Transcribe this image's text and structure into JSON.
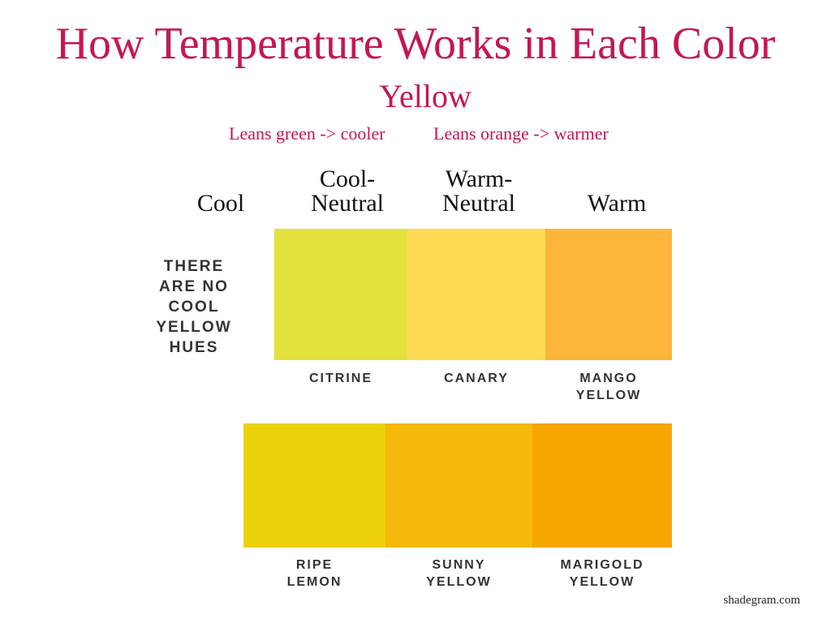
{
  "title": "How Temperature Works in Each Color",
  "subtitle": "Yellow",
  "leans": {
    "cool": "Leans green -> cooler",
    "warm": "Leans orange -> warmer"
  },
  "columns": {
    "cool": "Cool",
    "cool_neutral": "Cool-\nNeutral",
    "warm_neutral": "Warm-\nNeutral",
    "warm": "Warm"
  },
  "note": "THERE ARE NO COOL YELLOW HUES",
  "row1": [
    {
      "name": "CITRINE",
      "color": "#e3e13c"
    },
    {
      "name": "CANARY",
      "color": "#fed953"
    },
    {
      "name": "MANGO\nYELLOW",
      "color": "#fdb53c"
    }
  ],
  "row2": [
    {
      "name": "RIPE\nLEMON",
      "color": "#ecd10a"
    },
    {
      "name": "SUNNY\nYELLOW",
      "color": "#f4b90b"
    },
    {
      "name": "MARIGOLD\nYELLOW",
      "color": "#f5a600"
    }
  ],
  "footer": "shadegram.com"
}
